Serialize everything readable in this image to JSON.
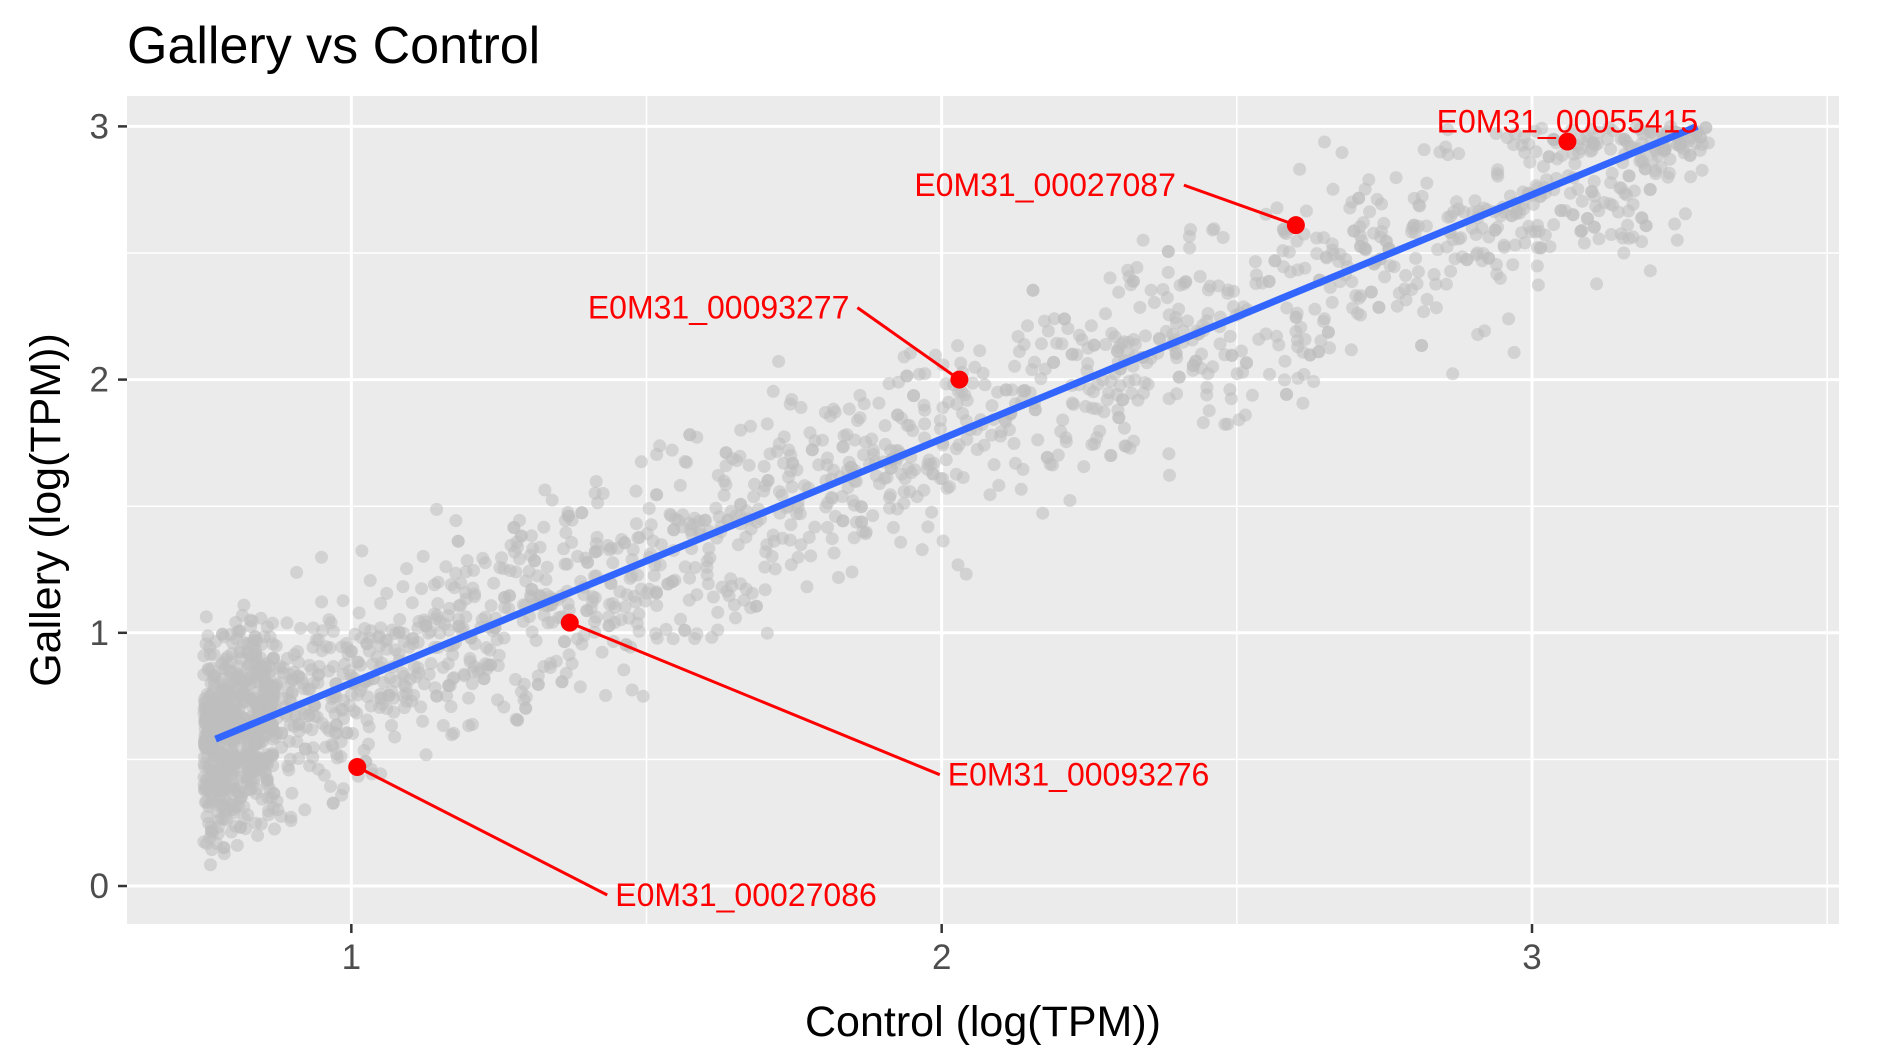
{
  "chart_data": {
    "type": "scatter",
    "title": "Gallery vs Control",
    "xlabel": "Control (log(TPM))",
    "ylabel": "Gallery (log(TPM))",
    "xlim": [
      0.62,
      3.52
    ],
    "ylim": [
      -0.15,
      3.12
    ],
    "x_ticks": [
      1,
      2,
      3
    ],
    "y_ticks": [
      0,
      1,
      2,
      3
    ],
    "x_tick_labels": [
      "1",
      "2",
      "3"
    ],
    "y_tick_labels": [
      "0",
      "1",
      "2",
      "3"
    ],
    "grid": true,
    "background_points": {
      "description_color": "gray",
      "count": 2200,
      "x_range": [
        0.75,
        3.3
      ],
      "y_range": [
        0.0,
        3.0
      ]
    },
    "trend_line": {
      "color": "#3366FF",
      "x": [
        0.77,
        3.28
      ],
      "y": [
        0.58,
        3.0
      ]
    },
    "highlighted_points": [
      {
        "label": "E0M31_00055415",
        "x": 3.06,
        "y": 2.94
      },
      {
        "label": "E0M31_00027087",
        "x": 2.6,
        "y": 2.61
      },
      {
        "label": "E0M31_00093277",
        "x": 2.03,
        "y": 2.0
      },
      {
        "label": "E0M31_00093276",
        "x": 1.37,
        "y": 1.04
      },
      {
        "label": "E0M31_00027086",
        "x": 1.01,
        "y": 0.47
      }
    ],
    "colors": {
      "panel_background": "#EBEBEB",
      "grid": "#FFFFFF",
      "points": "#BEBEBE",
      "highlight": "#FF0000",
      "trend": "#3366FF"
    }
  }
}
